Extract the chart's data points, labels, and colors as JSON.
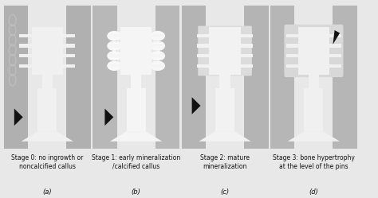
{
  "figsize": [
    4.74,
    2.49
  ],
  "dpi": 100,
  "bg_color": "#e8e8e8",
  "n_panels": 4,
  "panel_labels": [
    "(a)",
    "(b)",
    "(c)",
    "(d)"
  ],
  "stage_labels": [
    "Stage 0: no ingrowth or\nnoncalcified callus",
    "Stage 1: early mineralization\n/calcified callus",
    "Stage 2: mature\nmineralization",
    "Stage 3: bone hypertrophy\nat the level of the pins"
  ],
  "panel_bg": [
    "#7a7a7a",
    "#8c8c8c",
    "#787878",
    "#8a8a8a"
  ],
  "bone_col": [
    "#b0b0b0",
    "#b8b8b8",
    "#b4b4b4",
    "#b6b6b6"
  ],
  "implant_col": [
    "#f0f0f0",
    "#f5f5f5",
    "#f2f2f2",
    "#f0f0f0"
  ],
  "text_fontsize": 5.5,
  "label_fontsize": 6.0,
  "arrow_color": "#111111",
  "border_color": "#cccccc"
}
